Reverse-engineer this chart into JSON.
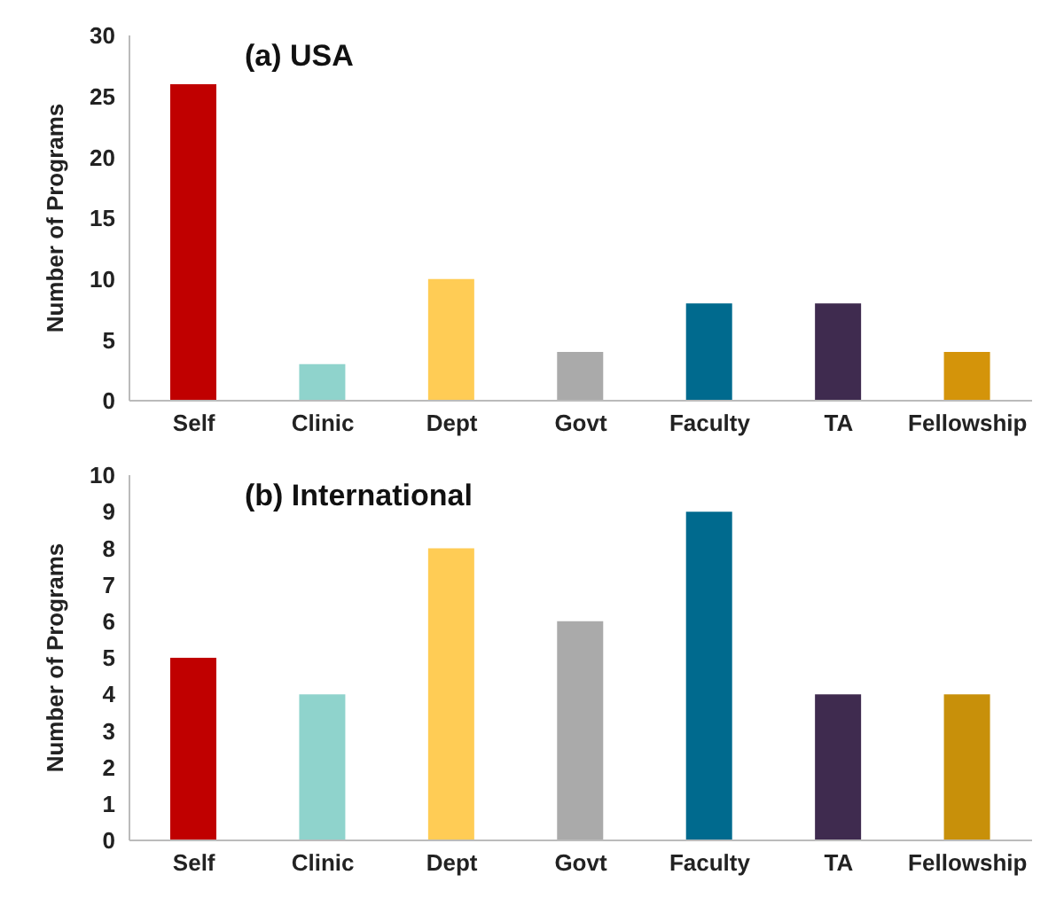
{
  "chart_data": [
    {
      "type": "bar",
      "title": "(a) USA",
      "ylabel": "Number of Programs",
      "categories": [
        "Self",
        "Clinic",
        "Dept",
        "Govt",
        "Faculty",
        "TA",
        "Fellowship"
      ],
      "values": [
        26,
        3,
        10,
        4,
        8,
        8,
        4
      ],
      "colors": [
        "#c00000",
        "#8fd3cc",
        "#ffcc55",
        "#aaaaaa",
        "#006a8e",
        "#3f2b4f",
        "#d4940a"
      ],
      "ylim": [
        0,
        30
      ],
      "yticks": [
        0,
        5,
        10,
        15,
        20,
        25,
        30
      ],
      "grid": false,
      "legend": false
    },
    {
      "type": "bar",
      "title": "(b) International",
      "ylabel": "Number of Programs",
      "categories": [
        "Self",
        "Clinic",
        "Dept",
        "Govt",
        "Faculty",
        "TA",
        "Fellowship"
      ],
      "values": [
        5,
        4,
        8,
        6,
        9,
        4,
        4
      ],
      "colors": [
        "#c00000",
        "#8fd3cc",
        "#ffcc55",
        "#aaaaaa",
        "#006a8e",
        "#3f2b4f",
        "#c8900a"
      ],
      "ylim": [
        0,
        10
      ],
      "yticks": [
        0,
        1,
        2,
        3,
        4,
        5,
        6,
        7,
        8,
        9,
        10
      ],
      "grid": false,
      "legend": false
    }
  ]
}
